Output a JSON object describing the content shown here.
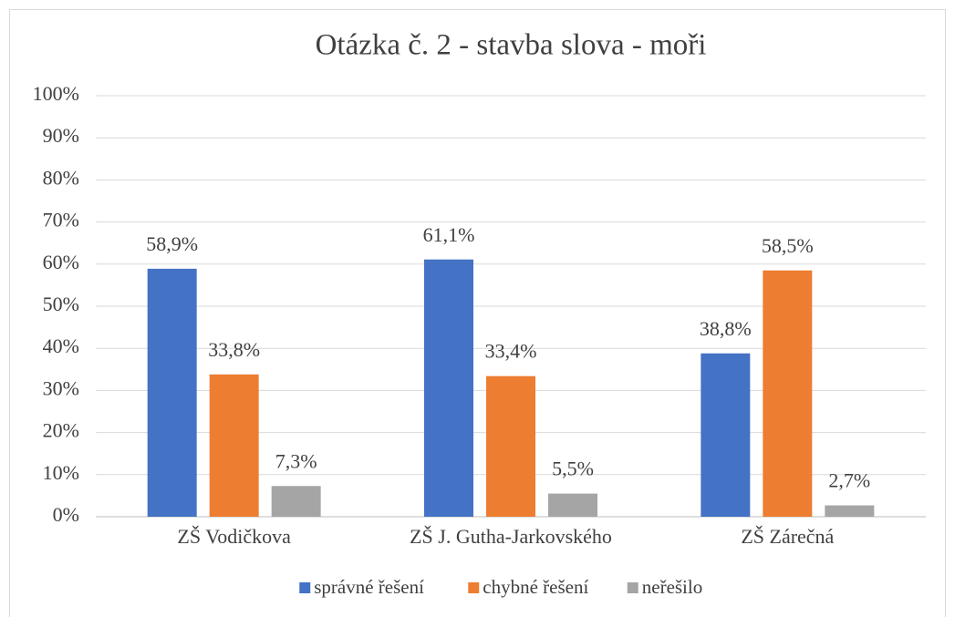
{
  "chart_data": {
    "type": "bar",
    "title": "Otázka č. 2 - stavba slova - moři",
    "categories": [
      "ZŠ Vodičkova",
      "ZŠ J. Gutha-Jarkovského",
      "ZŠ Zárečná"
    ],
    "series": [
      {
        "name": "správné řešení",
        "color": "#4472c4",
        "values": [
          58.9,
          61.1,
          38.8
        ],
        "value_labels": [
          "58,9%",
          "61,1%",
          "38,8%"
        ]
      },
      {
        "name": "chybné řešení",
        "color": "#ed7d31",
        "values": [
          33.8,
          33.4,
          58.5
        ],
        "value_labels": [
          "33,8%",
          "33,4%",
          "58,5%"
        ]
      },
      {
        "name": "neřešilo",
        "color": "#a5a5a5",
        "values": [
          7.3,
          5.5,
          2.7
        ],
        "value_labels": [
          "7,3%",
          "5,5%",
          "2,7%"
        ]
      }
    ],
    "ylim": [
      0,
      100
    ],
    "yticks": [
      {
        "value": 0,
        "label": "0%"
      },
      {
        "value": 10,
        "label": "10%"
      },
      {
        "value": 20,
        "label": "20%"
      },
      {
        "value": 30,
        "label": "30%"
      },
      {
        "value": 40,
        "label": "40%"
      },
      {
        "value": 50,
        "label": "50%"
      },
      {
        "value": 60,
        "label": "60%"
      },
      {
        "value": 70,
        "label": "70%"
      },
      {
        "value": 80,
        "label": "80%"
      },
      {
        "value": 90,
        "label": "90%"
      },
      {
        "value": 100,
        "label": "100%"
      }
    ],
    "grid": true,
    "legend": "bottom"
  }
}
